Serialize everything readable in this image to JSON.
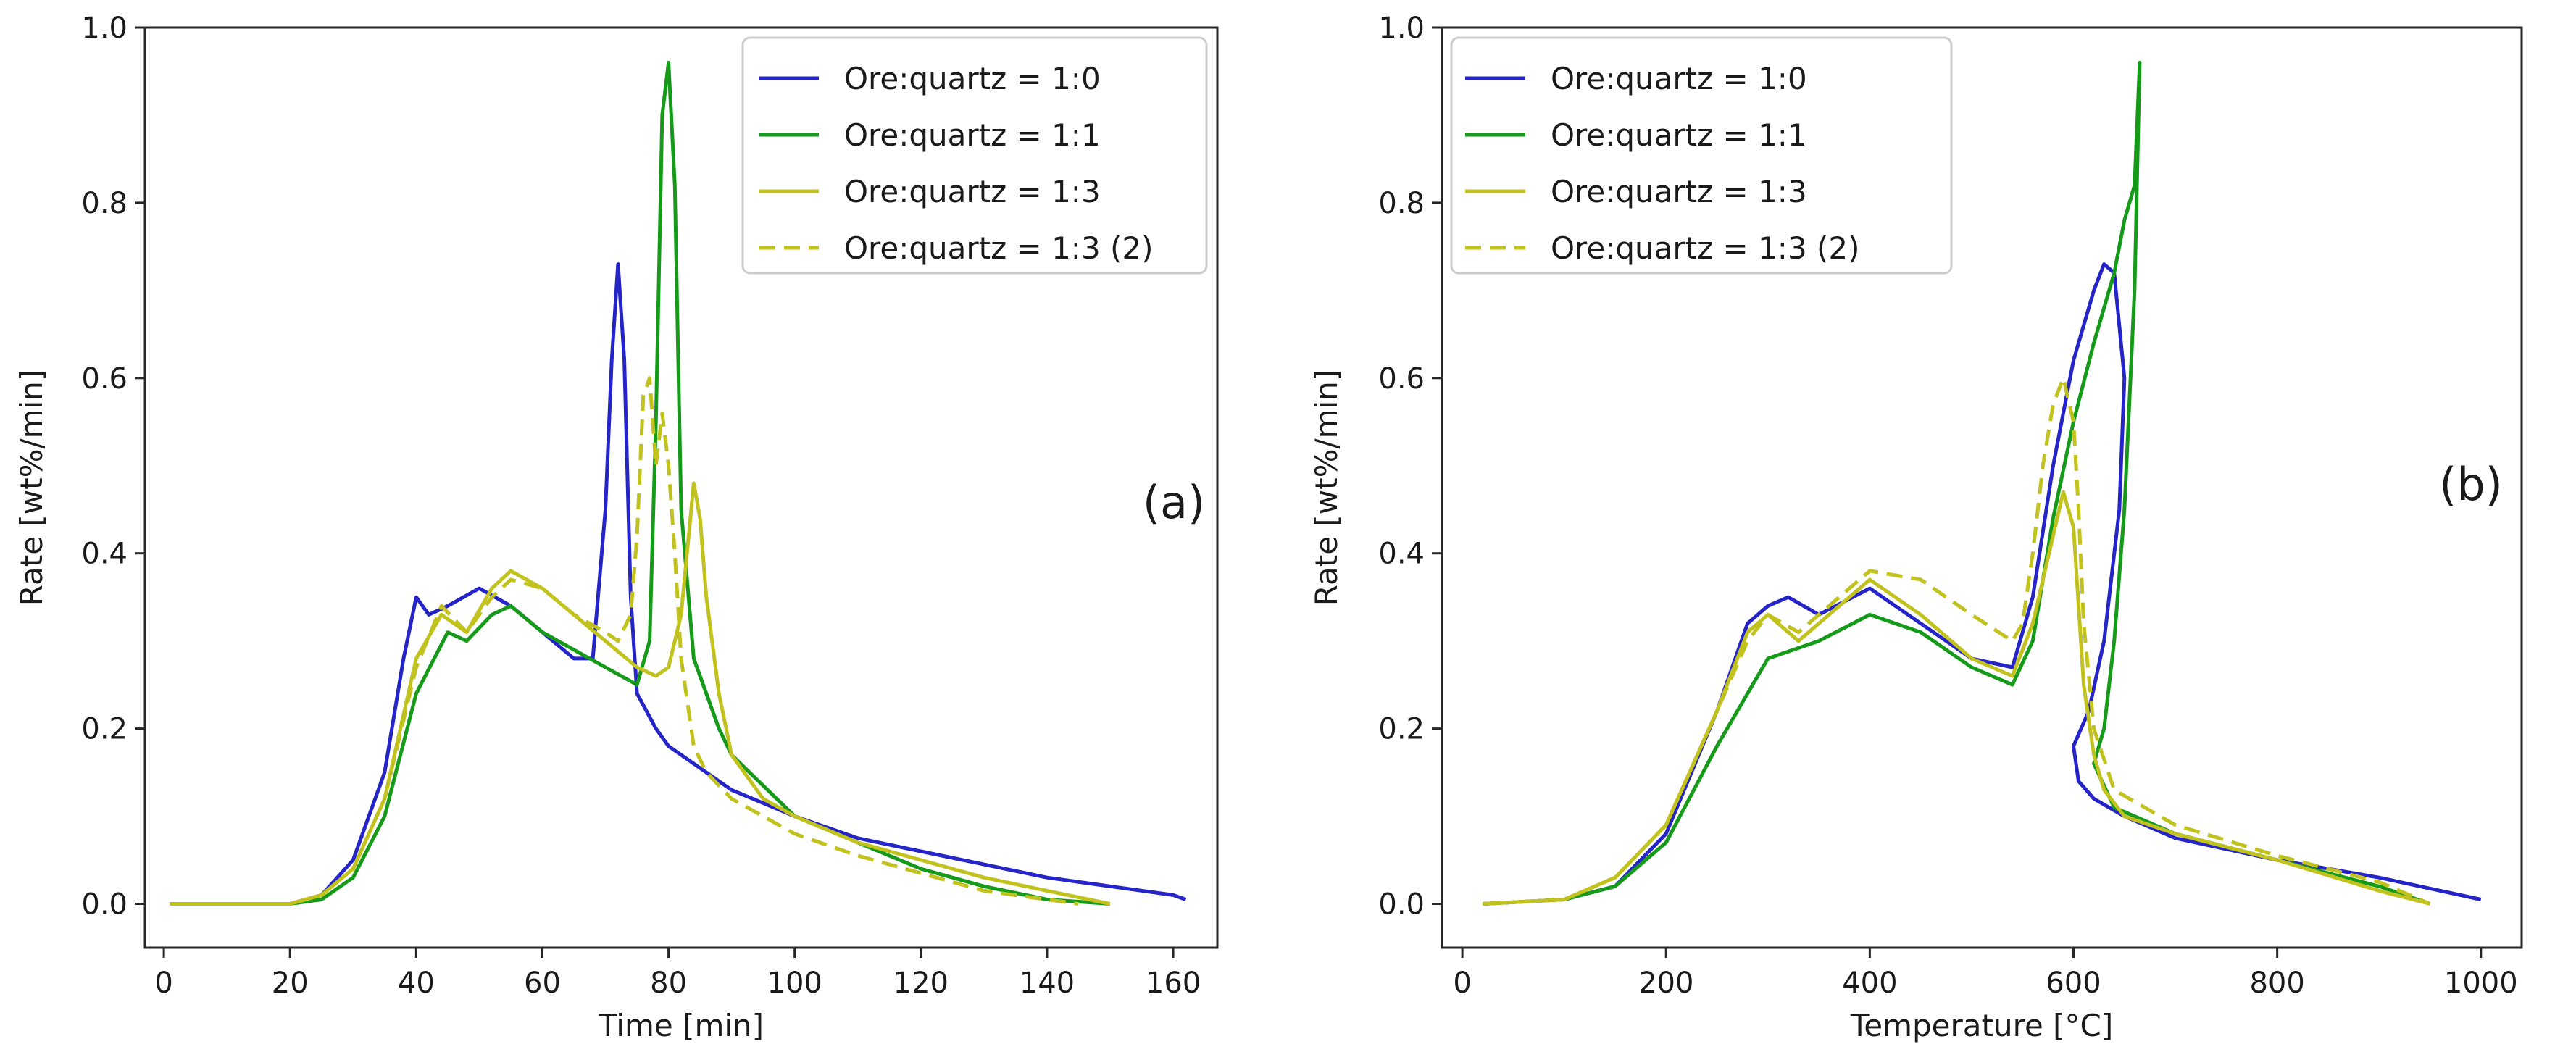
{
  "colors": {
    "ore_1_0": "#2424c8",
    "ore_1_1": "#169a1a",
    "ore_1_3": "#c2c21e",
    "axes": "#262626"
  },
  "chart_data": [
    {
      "type": "line",
      "panel_label": "(a)",
      "xlabel": "Time [min]",
      "ylabel": "Rate [wt%/min]",
      "xlim": [
        -3,
        167
      ],
      "ylim": [
        -0.05,
        1.0
      ],
      "xticks": [
        0,
        20,
        40,
        60,
        80,
        100,
        120,
        140,
        160
      ],
      "yticks": [
        0.0,
        0.2,
        0.4,
        0.6,
        0.8,
        1.0
      ],
      "xtick_labels": [
        "0",
        "20",
        "40",
        "60",
        "80",
        "100",
        "120",
        "140",
        "160"
      ],
      "ytick_labels": [
        "0.0",
        "0.2",
        "0.4",
        "0.6",
        "0.8",
        "1.0"
      ],
      "legend": "top-right",
      "series": [
        {
          "name": "Ore:quartz = 1:0",
          "color": "#2424c8",
          "style": "solid",
          "x": [
            1,
            20,
            25,
            30,
            35,
            38,
            40,
            42,
            45,
            50,
            55,
            60,
            65,
            68,
            70,
            71,
            72,
            73,
            74,
            75,
            78,
            80,
            90,
            100,
            110,
            120,
            130,
            140,
            150,
            160,
            162
          ],
          "y": [
            0.0,
            0.0,
            0.01,
            0.05,
            0.15,
            0.28,
            0.35,
            0.33,
            0.34,
            0.36,
            0.34,
            0.31,
            0.28,
            0.28,
            0.45,
            0.62,
            0.73,
            0.62,
            0.35,
            0.24,
            0.2,
            0.18,
            0.13,
            0.1,
            0.075,
            0.06,
            0.045,
            0.03,
            0.02,
            0.01,
            0.005
          ]
        },
        {
          "name": "Ore:quartz = 1:1",
          "color": "#169a1a",
          "style": "solid",
          "x": [
            1,
            20,
            25,
            30,
            35,
            40,
            45,
            48,
            52,
            55,
            60,
            65,
            70,
            75,
            77,
            78,
            79,
            80,
            81,
            82,
            84,
            88,
            90,
            100,
            110,
            120,
            130,
            140,
            150
          ],
          "y": [
            0.0,
            0.0,
            0.005,
            0.03,
            0.1,
            0.24,
            0.31,
            0.3,
            0.33,
            0.34,
            0.31,
            0.29,
            0.27,
            0.25,
            0.3,
            0.55,
            0.9,
            0.96,
            0.82,
            0.45,
            0.28,
            0.2,
            0.17,
            0.1,
            0.07,
            0.04,
            0.02,
            0.005,
            0.0
          ]
        },
        {
          "name": "Ore:quartz = 1:3",
          "color": "#c2c21e",
          "style": "solid",
          "x": [
            1,
            20,
            25,
            30,
            35,
            40,
            44,
            48,
            52,
            55,
            60,
            65,
            70,
            75,
            78,
            80,
            82,
            84,
            85,
            86,
            88,
            90,
            95,
            100,
            110,
            120,
            130,
            140,
            150
          ],
          "y": [
            0.0,
            0.0,
            0.01,
            0.04,
            0.12,
            0.28,
            0.33,
            0.31,
            0.36,
            0.38,
            0.36,
            0.33,
            0.3,
            0.27,
            0.26,
            0.27,
            0.33,
            0.48,
            0.44,
            0.35,
            0.24,
            0.17,
            0.12,
            0.1,
            0.07,
            0.05,
            0.03,
            0.015,
            0.0
          ]
        },
        {
          "name": "Ore:quartz = 1:3 (2)",
          "color": "#c2c21e",
          "style": "dashed",
          "x": [
            1,
            20,
            25,
            30,
            35,
            40,
            44,
            48,
            52,
            55,
            60,
            65,
            70,
            72,
            74,
            75,
            76,
            77,
            78,
            79,
            80,
            81,
            82,
            84,
            86,
            90,
            100,
            110,
            120,
            130,
            140,
            145
          ],
          "y": [
            0.0,
            0.0,
            0.01,
            0.04,
            0.12,
            0.27,
            0.34,
            0.31,
            0.35,
            0.37,
            0.36,
            0.33,
            0.31,
            0.3,
            0.33,
            0.42,
            0.58,
            0.6,
            0.5,
            0.56,
            0.5,
            0.4,
            0.28,
            0.18,
            0.15,
            0.12,
            0.08,
            0.055,
            0.035,
            0.015,
            0.005,
            0.0
          ]
        }
      ]
    },
    {
      "type": "line",
      "panel_label": "(b)",
      "xlabel": "Temperature [°C]",
      "ylabel": "Rate [wt%/min]",
      "xlim": [
        -20,
        1040
      ],
      "ylim": [
        -0.05,
        1.0
      ],
      "xticks": [
        0,
        200,
        400,
        600,
        800,
        1000
      ],
      "yticks": [
        0.0,
        0.2,
        0.4,
        0.6,
        0.8,
        1.0
      ],
      "xtick_labels": [
        "0",
        "200",
        "400",
        "600",
        "800",
        "1000"
      ],
      "ytick_labels": [
        "0.0",
        "0.2",
        "0.4",
        "0.6",
        "0.8",
        "1.0"
      ],
      "legend": "top-left",
      "series": [
        {
          "name": "Ore:quartz = 1:0",
          "color": "#2424c8",
          "style": "solid",
          "x": [
            20,
            100,
            150,
            200,
            250,
            280,
            300,
            320,
            350,
            400,
            450,
            500,
            540,
            560,
            580,
            600,
            620,
            630,
            640,
            650,
            645,
            630,
            615,
            600,
            605,
            620,
            650,
            700,
            800,
            900,
            1000
          ],
          "y": [
            0.0,
            0.005,
            0.02,
            0.08,
            0.22,
            0.32,
            0.34,
            0.35,
            0.33,
            0.36,
            0.32,
            0.28,
            0.27,
            0.35,
            0.5,
            0.62,
            0.7,
            0.73,
            0.72,
            0.6,
            0.45,
            0.3,
            0.22,
            0.18,
            0.14,
            0.12,
            0.1,
            0.075,
            0.05,
            0.03,
            0.005
          ]
        },
        {
          "name": "Ore:quartz = 1:1",
          "color": "#169a1a",
          "style": "solid",
          "x": [
            20,
            100,
            150,
            200,
            250,
            300,
            350,
            400,
            450,
            500,
            540,
            560,
            580,
            600,
            620,
            640,
            650,
            660,
            665,
            660,
            650,
            640,
            630,
            620,
            640,
            700,
            800,
            900,
            950
          ],
          "y": [
            0.0,
            0.005,
            0.02,
            0.07,
            0.18,
            0.28,
            0.3,
            0.33,
            0.31,
            0.27,
            0.25,
            0.3,
            0.44,
            0.55,
            0.64,
            0.72,
            0.78,
            0.82,
            0.96,
            0.7,
            0.45,
            0.3,
            0.2,
            0.16,
            0.11,
            0.08,
            0.05,
            0.02,
            0.0
          ]
        },
        {
          "name": "Ore:quartz = 1:3",
          "color": "#c2c21e",
          "style": "solid",
          "x": [
            20,
            100,
            150,
            200,
            250,
            280,
            300,
            330,
            350,
            400,
            450,
            500,
            540,
            560,
            580,
            590,
            600,
            610,
            620,
            630,
            650,
            700,
            800,
            900,
            950
          ],
          "y": [
            0.0,
            0.005,
            0.03,
            0.09,
            0.22,
            0.31,
            0.33,
            0.3,
            0.32,
            0.37,
            0.33,
            0.28,
            0.26,
            0.32,
            0.42,
            0.47,
            0.43,
            0.25,
            0.17,
            0.13,
            0.1,
            0.08,
            0.05,
            0.015,
            0.0
          ]
        },
        {
          "name": "Ore:quartz = 1:3 (2)",
          "color": "#c2c21e",
          "style": "dashed",
          "x": [
            20,
            100,
            150,
            200,
            250,
            280,
            300,
            330,
            350,
            400,
            450,
            500,
            540,
            550,
            560,
            570,
            580,
            590,
            600,
            605,
            610,
            620,
            640,
            700,
            800,
            900,
            950
          ],
          "y": [
            0.0,
            0.005,
            0.03,
            0.09,
            0.22,
            0.3,
            0.33,
            0.31,
            0.33,
            0.38,
            0.37,
            0.33,
            0.3,
            0.32,
            0.4,
            0.5,
            0.57,
            0.6,
            0.55,
            0.45,
            0.32,
            0.2,
            0.13,
            0.09,
            0.055,
            0.025,
            0.0
          ]
        }
      ]
    }
  ]
}
